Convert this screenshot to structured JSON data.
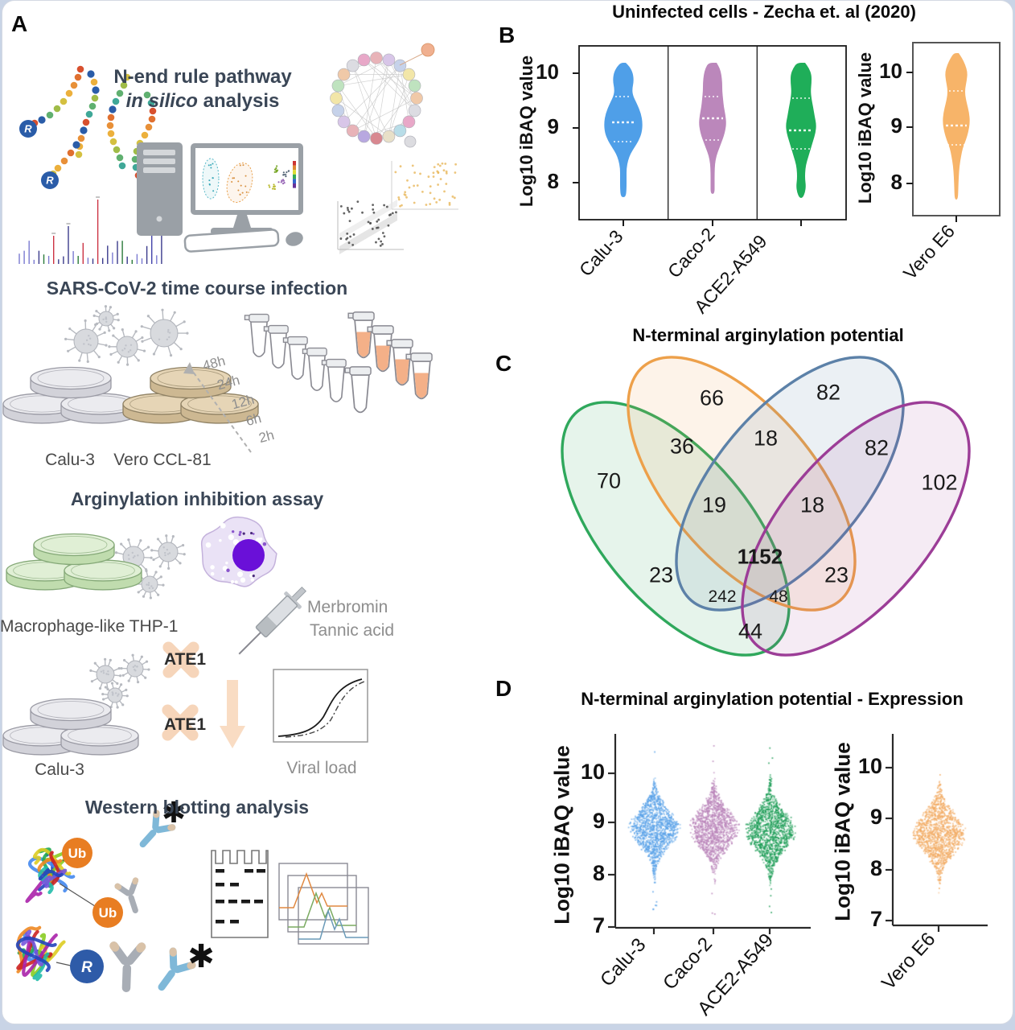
{
  "colors": {
    "calu3_blue": "#4f9fe8",
    "caco2_mauve": "#bb87bb",
    "ace2_green": "#1fae59",
    "vero_orange": "#f7b469",
    "venn_green": "#2fa85c",
    "venn_orange": "#eda04a",
    "venn_blue": "#5c81a8",
    "venn_purple": "#9c3d97",
    "heading_slate": "#3a4656",
    "muted_gray": "#8e8e8e"
  },
  "panelA": {
    "label": "A",
    "insilico_title": "N-end rule pathway",
    "insilico_sub_italic": "in silico",
    "insilico_sub_rest": " analysis",
    "timecourse_title": "SARS-CoV-2 time course infection",
    "timepoints": [
      "48h",
      "24h",
      "12h",
      "6h",
      "2h"
    ],
    "calu3_label": "Calu-3",
    "vero_ccl81_label": "Vero CCL-81",
    "assay_title": "Arginylation inhibition assay",
    "thp1_label": "Macrophage-like THP-1",
    "inhibitor1": "Merbromin",
    "inhibitor2": "Tannic acid",
    "ate1_label": "ATE1",
    "calu3_label2": "Calu-3",
    "viral_load_label": "Viral load",
    "western_title": "Western blotting analysis",
    "ub_label": "Ub",
    "r_label": "R",
    "asterisk": "✱"
  },
  "panelB": {
    "label": "B",
    "title": "Uninfected cells - Zecha et. al (2020)",
    "ylabel": "Log10 iBAQ value",
    "yticks": [
      "10",
      "9",
      "8"
    ],
    "categories": [
      "Calu-3",
      "Caco-2",
      "ACE2-A549"
    ],
    "vero_ylabel": "Log10 iBAQ value",
    "vero_category": "Vero E6"
  },
  "panelC": {
    "label": "C",
    "title": "N-terminal arginylation potential"
  },
  "panelD": {
    "label": "D",
    "title": "N-terminal arginylation potential - Expression",
    "ylabel": "Log10 iBAQ value",
    "yticks": [
      "10",
      "9",
      "8",
      "7"
    ],
    "categories": [
      "Calu-3",
      "Caco-2",
      "ACE2-A549"
    ],
    "vero_ylabel": "Log10 iBAQ value",
    "vero_category": "Vero E6"
  },
  "chart_data": [
    {
      "type": "violin",
      "title": "Uninfected cells - Zecha et. al (2020)",
      "ylabel": "Log10 iBAQ value",
      "ylim": [
        7.5,
        10.5
      ],
      "yticks": [
        8,
        9,
        10
      ],
      "series": [
        {
          "name": "Calu-3",
          "color": "#4f9fe8",
          "min": 7.95,
          "q1": 8.75,
          "median": 9.1,
          "q3": 9.57,
          "max": 10.2
        },
        {
          "name": "Caco-2",
          "color": "#bb87bb",
          "min": 8.0,
          "q1": 8.78,
          "median": 9.18,
          "q3": 9.57,
          "max": 10.2
        },
        {
          "name": "ACE2-A549",
          "color": "#1fae59",
          "min": 7.95,
          "q1": 8.62,
          "median": 8.96,
          "q3": 9.55,
          "max": 10.2
        },
        {
          "name": "Vero E6",
          "color": "#f7b469",
          "min": 7.65,
          "q1": 8.7,
          "median": 9.04,
          "q3": 9.67,
          "max": 10.35
        }
      ]
    },
    {
      "type": "venn4",
      "title": "N-terminal arginylation potential",
      "sets": [
        "green-ellipse",
        "orange-ellipse",
        "blue-ellipse",
        "purple-ellipse"
      ],
      "regions": [
        {
          "sets": [
            "green"
          ],
          "value": "70"
        },
        {
          "sets": [
            "orange"
          ],
          "value": "66"
        },
        {
          "sets": [
            "blue"
          ],
          "value": "82"
        },
        {
          "sets": [
            "purple"
          ],
          "value": "102"
        },
        {
          "sets": [
            "green",
            "orange"
          ],
          "value": "36"
        },
        {
          "sets": [
            "orange",
            "blue"
          ],
          "value": "18"
        },
        {
          "sets": [
            "blue",
            "purple"
          ],
          "value": "82"
        },
        {
          "sets": [
            "green",
            "orange",
            "blue"
          ],
          "value": "19"
        },
        {
          "sets": [
            "orange",
            "blue",
            "purple"
          ],
          "value": "18"
        },
        {
          "sets": [
            "green",
            "blue"
          ],
          "value": "23"
        },
        {
          "sets": [
            "green",
            "orange",
            "blue",
            "purple"
          ],
          "value": "1152"
        },
        {
          "sets": [
            "orange",
            "purple"
          ],
          "value": "23"
        },
        {
          "sets": [
            "green",
            "blue",
            "purple"
          ],
          "value": "242"
        },
        {
          "sets": [
            "green",
            "orange",
            "purple"
          ],
          "value": "48"
        },
        {
          "sets": [
            "green",
            "purple"
          ],
          "value": "44"
        }
      ]
    },
    {
      "type": "beeswarm",
      "title": "N-terminal arginylation potential - Expression",
      "ylabel": "Log10 iBAQ value",
      "ylim": [
        7,
        10.6
      ],
      "yticks": [
        7,
        8,
        9,
        10
      ],
      "series": [
        {
          "name": "Calu-3",
          "color": "#5aa2e8",
          "mean": 8.95,
          "sd": 0.55,
          "min": 7.2,
          "max": 10.55,
          "n": 1300
        },
        {
          "name": "Caco-2",
          "color": "#ba85ba",
          "mean": 8.95,
          "sd": 0.56,
          "min": 7.2,
          "max": 10.55,
          "n": 1300
        },
        {
          "name": "ACE2-A549",
          "color": "#1f9e58",
          "mean": 8.9,
          "sd": 0.58,
          "min": 7.3,
          "max": 10.55,
          "n": 1300
        },
        {
          "name": "Vero E6",
          "color": "#f2ab63",
          "mean": 8.85,
          "sd": 0.58,
          "min": 7.05,
          "max": 10.35,
          "n": 1300
        }
      ]
    }
  ]
}
